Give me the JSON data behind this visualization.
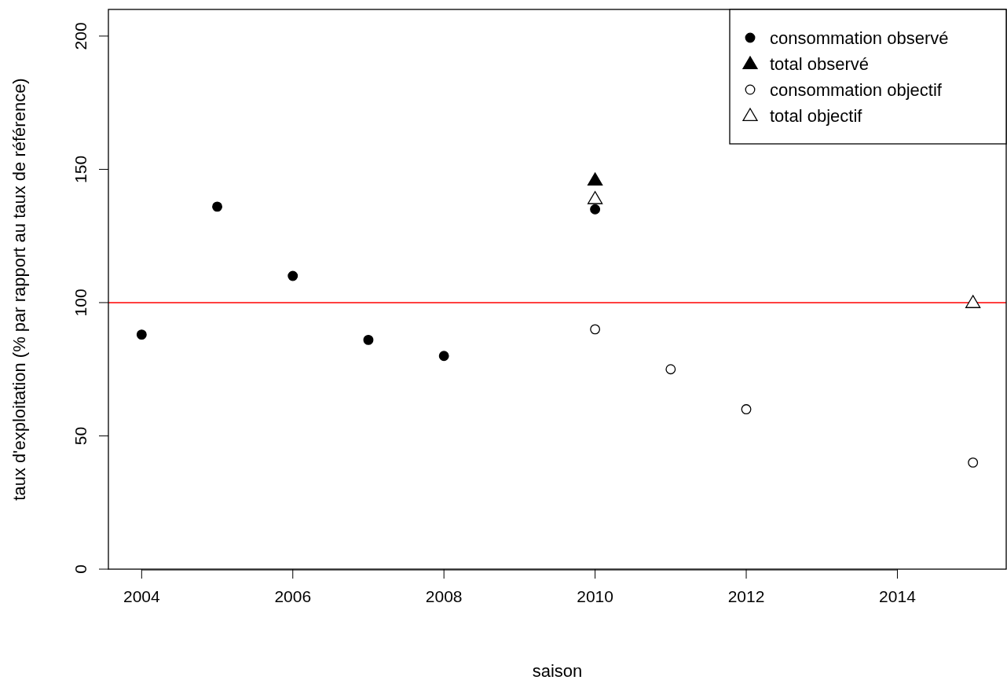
{
  "chart_data": {
    "type": "scatter",
    "xlabel": "saison",
    "ylabel": "taux d'exploitation (% par rapport au taux de référence)",
    "xlim": [
      2003.56,
      2015.44
    ],
    "xticks": [
      2004,
      2006,
      2008,
      2010,
      2012,
      2014
    ],
    "ylim": [
      0,
      210
    ],
    "yticks": [
      0,
      50,
      100,
      150,
      200
    ],
    "series": [
      {
        "name": "consommation observé",
        "color": "#000000",
        "marker": "circle",
        "x": [
          2004,
          2005,
          2006,
          2007,
          2008,
          2010
        ],
        "values": [
          88,
          136,
          110,
          86,
          80,
          135
        ]
      },
      {
        "name": "total observé",
        "color": "#000000",
        "marker": "triangle",
        "x": [
          2010
        ],
        "values": [
          146
        ]
      },
      {
        "name": "consommation objectif",
        "color": "#ffffff",
        "marker": "circle",
        "x": [
          2010,
          2011,
          2012,
          2015
        ],
        "values": [
          90,
          75,
          60,
          40
        ]
      },
      {
        "name": "total objectif",
        "color": "#ffffff",
        "marker": "triangle",
        "x": [
          2010,
          2015
        ],
        "values": [
          139,
          100
        ]
      }
    ],
    "ref_lines": [
      {
        "axis": "y",
        "value": 100,
        "color": "#ff0000"
      }
    ],
    "legend": "top right",
    "grid": false
  }
}
